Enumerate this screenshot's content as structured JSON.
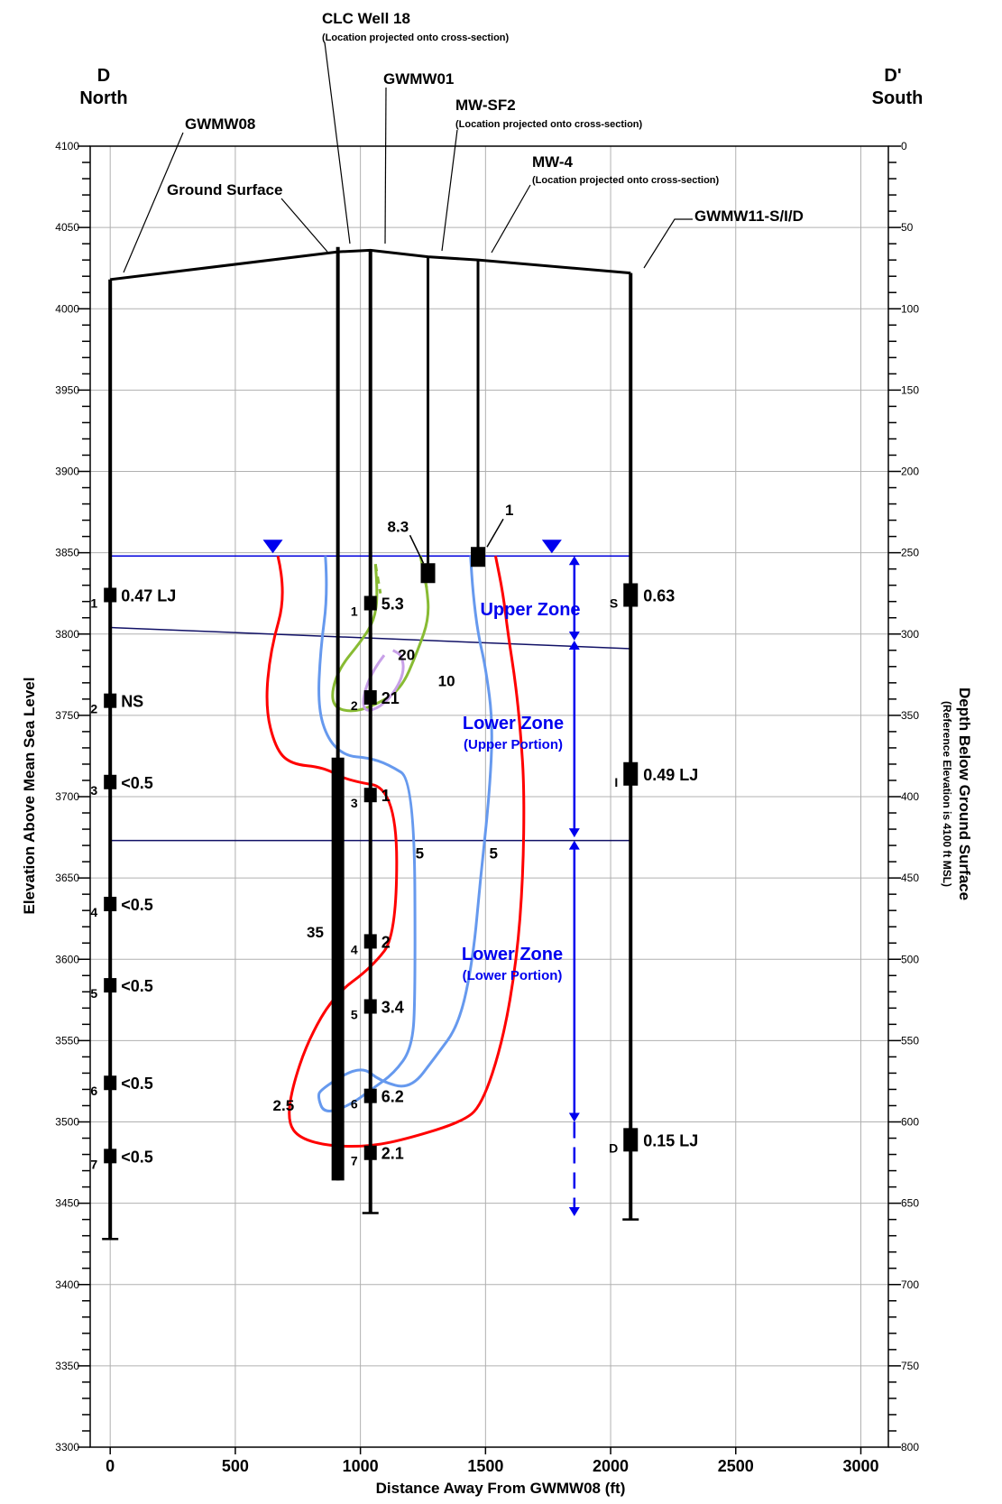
{
  "chart_data": {
    "type": "cross-section",
    "labels": {
      "left_end_letter": "D",
      "left_end_dir": "North",
      "right_end_letter": "D'",
      "right_end_dir": "South",
      "clc_well": "CLC Well 18",
      "clc_note": "(Location projected onto cross-section)",
      "gwmw01": "GWMW01",
      "mwsf2": "MW-SF2",
      "mwsf2_note": "(Location projected onto cross-section)",
      "mw4": "MW-4",
      "mw4_note": "(Location projected onto cross-section)",
      "gwmw08": "GWMW08",
      "gwmw11": "GWMW11-S/I/D",
      "ground_surface": "Ground Surface",
      "xlabel": "Distance Away From GWMW08 (ft)",
      "ylabel": "Elevation Above Mean Sea Level",
      "y2label": "Depth Below Ground Surface",
      "y2sublabel": "(Reference Elevation is 4100 ft MSL)",
      "upper_zone": "Upper Zone",
      "lower_zone": "Lower Zone",
      "upper_portion": "(Upper Portion)",
      "lower_portion": "(Lower Portion)",
      "clc_value": "35"
    },
    "axes": {
      "xlim": [
        -80,
        3110
      ],
      "ylim": [
        3300,
        4100
      ],
      "x_ticks": [
        0,
        500,
        1000,
        1500,
        2000,
        2500,
        3000
      ],
      "x_tick_labels": [
        "0",
        "500",
        "1000",
        "1500",
        "2000",
        "2500",
        "3000"
      ],
      "y_ticks": [
        3300,
        3350,
        3400,
        3450,
        3500,
        3550,
        3600,
        3650,
        3700,
        3750,
        3800,
        3850,
        3900,
        3950,
        4000,
        4050,
        4100
      ],
      "y_tick_labels": [
        "3300",
        "3350",
        "3400",
        "3450",
        "3500",
        "3550",
        "3600",
        "3650",
        "3700",
        "3750",
        "3800",
        "3850",
        "3900",
        "3950",
        "4000",
        "4050",
        "4100"
      ],
      "depth_ticks": [
        0,
        50,
        100,
        150,
        200,
        250,
        300,
        350,
        400,
        450,
        500,
        550,
        600,
        650,
        700,
        750,
        800
      ],
      "depth_tick_labels": [
        "0",
        "50",
        "100",
        "150",
        "200",
        "250",
        "300",
        "350",
        "400",
        "450",
        "500",
        "550",
        "600",
        "650",
        "700",
        "750",
        "800"
      ],
      "grid": true
    },
    "ground_surface": [
      [
        0,
        4018
      ],
      [
        910,
        4035
      ],
      [
        1040,
        4036
      ],
      [
        1270,
        4032
      ],
      [
        1470,
        4030
      ],
      [
        2080,
        4022
      ]
    ],
    "water_table": {
      "y": 3848,
      "x_range": [
        0,
        2080
      ],
      "markers_x": [
        650,
        1765
      ]
    },
    "zone_boundaries": [
      {
        "x1": 0,
        "y1": 3804,
        "x2": 2080,
        "y2": 3791
      },
      {
        "x1": 0,
        "y1": 3673,
        "x2": 2080,
        "y2": 3673
      }
    ],
    "wells": [
      {
        "name": "GWMW08",
        "x": 0,
        "top": 4018,
        "bottom": 3428,
        "samples": [
          {
            "port": "1",
            "y": 3824,
            "value": "0.47 LJ"
          },
          {
            "port": "2",
            "y": 3759,
            "value": "NS"
          },
          {
            "port": "3",
            "y": 3709,
            "value": "<0.5"
          },
          {
            "port": "4",
            "y": 3634,
            "value": "<0.5"
          },
          {
            "port": "5",
            "y": 3584,
            "value": "<0.5"
          },
          {
            "port": "6",
            "y": 3524,
            "value": "<0.5"
          },
          {
            "port": "7",
            "y": 3479,
            "value": "<0.5"
          }
        ]
      },
      {
        "name": "GWMW01",
        "x": 1040,
        "top": 4036,
        "bottom": 3444,
        "samples": [
          {
            "port": "1",
            "y": 3819,
            "value": "5.3"
          },
          {
            "port": "2",
            "y": 3761,
            "value": "21"
          },
          {
            "port": "3",
            "y": 3701,
            "value": "1"
          },
          {
            "port": "4",
            "y": 3611,
            "value": "2"
          },
          {
            "port": "5",
            "y": 3571,
            "value": "3.4"
          },
          {
            "port": "6",
            "y": 3516,
            "value": "6.2"
          },
          {
            "port": "7",
            "y": 3481,
            "value": "2.1"
          }
        ]
      },
      {
        "name": "GWMW11-S/I/D",
        "x": 2080,
        "top": 4022,
        "bottom": 3440,
        "samples": [
          {
            "port": "S",
            "y": 3824,
            "value": "0.63"
          },
          {
            "port": "I",
            "y": 3714,
            "value": "0.49 LJ"
          },
          {
            "port": "D",
            "y": 3489,
            "value": "0.15 LJ"
          }
        ]
      },
      {
        "name": "MW-SF2",
        "x": 1270,
        "top": 4032,
        "screen_y": 3838,
        "value": "8.3"
      },
      {
        "name": "MW-4",
        "x": 1470,
        "top": 4030,
        "screen_y": 3848,
        "value": "1"
      },
      {
        "name": "CLC Well 18",
        "x": 910,
        "top": 4038,
        "bottom": 3464,
        "screen_top": 3724,
        "value": "35"
      }
    ],
    "contours": [
      {
        "value": "2.5",
        "color": "#ff0000",
        "label_at": [
          650,
          3507
        ],
        "points": [
          [
            670,
            3848
          ],
          [
            705,
            3825
          ],
          [
            640,
            3790
          ],
          [
            620,
            3755
          ],
          [
            660,
            3730
          ],
          [
            720,
            3720
          ],
          [
            855,
            3718
          ],
          [
            945,
            3710
          ],
          [
            1145,
            3705
          ],
          [
            1145,
            3615
          ],
          [
            1045,
            3595
          ],
          [
            895,
            3578
          ],
          [
            790,
            3550
          ],
          [
            725,
            3520
          ],
          [
            710,
            3500
          ],
          [
            755,
            3490
          ],
          [
            880,
            3485
          ],
          [
            1045,
            3485
          ],
          [
            1195,
            3490
          ],
          [
            1405,
            3500
          ],
          [
            1485,
            3510
          ],
          [
            1570,
            3550
          ],
          [
            1625,
            3600
          ],
          [
            1650,
            3650
          ],
          [
            1655,
            3705
          ],
          [
            1640,
            3740
          ],
          [
            1620,
            3770
          ],
          [
            1590,
            3800
          ],
          [
            1570,
            3825
          ],
          [
            1540,
            3848
          ]
        ]
      },
      {
        "value": "5",
        "color": "#6699ee",
        "label_at": [
          1515,
          3662
        ],
        "points": [
          [
            860,
            3848
          ],
          [
            870,
            3825
          ],
          [
            840,
            3790
          ],
          [
            830,
            3755
          ],
          [
            870,
            3735
          ],
          [
            940,
            3725
          ],
          [
            1030,
            3724
          ],
          [
            1110,
            3720
          ],
          [
            1215,
            3710
          ],
          [
            1220,
            3575
          ],
          [
            1205,
            3545
          ],
          [
            1135,
            3530
          ],
          [
            1045,
            3520
          ],
          [
            955,
            3510
          ],
          [
            855,
            3505
          ],
          [
            830,
            3515
          ],
          [
            840,
            3520
          ],
          [
            1000,
            3535
          ],
          [
            1080,
            3525
          ],
          [
            1200,
            3520
          ],
          [
            1300,
            3540
          ],
          [
            1395,
            3560
          ],
          [
            1450,
            3600
          ],
          [
            1480,
            3650
          ],
          [
            1515,
            3700
          ],
          [
            1530,
            3745
          ],
          [
            1500,
            3780
          ],
          [
            1470,
            3800
          ],
          [
            1450,
            3825
          ],
          [
            1440,
            3848
          ]
        ]
      },
      {
        "value": "5",
        "color": "#6699ee",
        "label_at": [
          1220,
          3662
        ],
        "points": []
      },
      {
        "value": "10",
        "color": "#88bb33",
        "label_at": [
          1310,
          3768
        ],
        "points": [
          [
            1060,
            3843
          ],
          [
            1070,
            3825
          ],
          [
            1055,
            3808
          ],
          [
            1000,
            3795
          ],
          [
            920,
            3780
          ],
          [
            885,
            3765
          ],
          [
            895,
            3755
          ],
          [
            960,
            3752
          ],
          [
            1040,
            3755
          ],
          [
            1160,
            3765
          ],
          [
            1230,
            3790
          ],
          [
            1275,
            3810
          ],
          [
            1265,
            3830
          ],
          [
            1240,
            3848
          ]
        ]
      },
      {
        "value": "20",
        "color": "#c8a0e8",
        "label_at": [
          1150,
          3784
        ],
        "points": [
          [
            1095,
            3787
          ],
          [
            1050,
            3778
          ],
          [
            1010,
            3762
          ],
          [
            1015,
            3752
          ],
          [
            1080,
            3755
          ],
          [
            1140,
            3765
          ],
          [
            1175,
            3777
          ],
          [
            1165,
            3787
          ],
          [
            1130,
            3790
          ]
        ]
      }
    ]
  }
}
